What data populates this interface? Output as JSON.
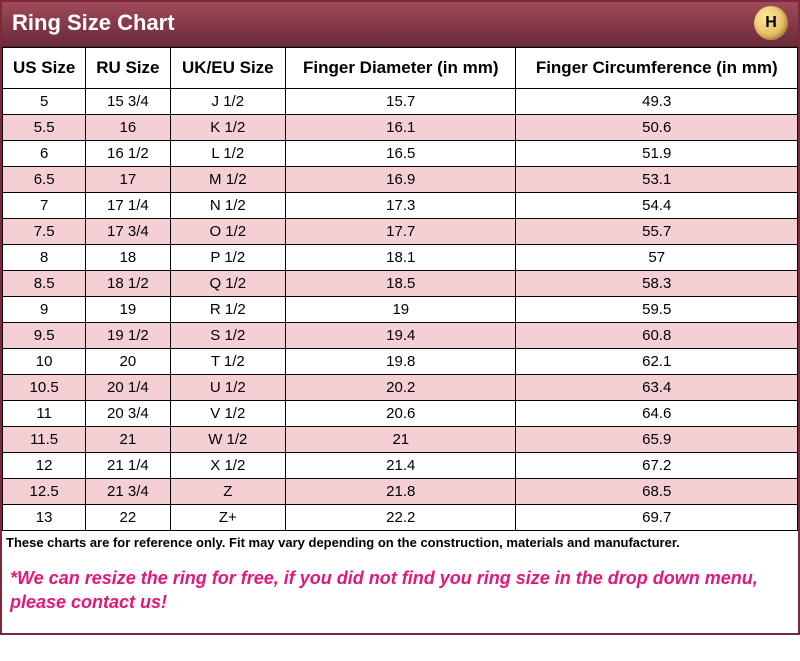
{
  "header": {
    "title": "Ring Size Chart",
    "logo_letter": "H"
  },
  "table": {
    "columns": [
      "US Size",
      "RU Size",
      "UK/EU Size",
      "Finger Diameter (in mm)",
      "Finger Circumference (in mm)"
    ],
    "rows": [
      [
        "5",
        "15 3/4",
        "J 1/2",
        "15.7",
        "49.3"
      ],
      [
        "5.5",
        "16",
        "K 1/2",
        "16.1",
        "50.6"
      ],
      [
        "6",
        "16 1/2",
        "L 1/2",
        "16.5",
        "51.9"
      ],
      [
        "6.5",
        "17",
        "M 1/2",
        "16.9",
        "53.1"
      ],
      [
        "7",
        "17 1/4",
        "N 1/2",
        "17.3",
        "54.4"
      ],
      [
        "7.5",
        "17 3/4",
        "O 1/2",
        "17.7",
        "55.7"
      ],
      [
        "8",
        "18",
        "P 1/2",
        "18.1",
        "57"
      ],
      [
        "8.5",
        "18 1/2",
        "Q 1/2",
        "18.5",
        "58.3"
      ],
      [
        "9",
        "19",
        "R 1/2",
        "19",
        "59.5"
      ],
      [
        "9.5",
        "19 1/2",
        "S 1/2",
        "19.4",
        "60.8"
      ],
      [
        "10",
        "20",
        "T 1/2",
        "19.8",
        "62.1"
      ],
      [
        "10.5",
        "20 1/4",
        "U 1/2",
        "20.2",
        "63.4"
      ],
      [
        "11",
        "20 3/4",
        "V 1/2",
        "20.6",
        "64.6"
      ],
      [
        "11.5",
        "21",
        "W 1/2",
        "21",
        "65.9"
      ],
      [
        "12",
        "21 1/4",
        "X 1/2",
        "21.4",
        "67.2"
      ],
      [
        "12.5",
        "21 3/4",
        "Z",
        "21.8",
        "68.5"
      ],
      [
        "13",
        "22",
        "Z+",
        "22.2",
        "69.7"
      ]
    ],
    "header_bg": "#ffffff",
    "row_odd_bg": "#ffffff",
    "row_even_bg": "#f4cfd3",
    "border_color": "#000000",
    "header_fontsize": 17,
    "cell_fontsize": 15
  },
  "footer": {
    "disclaimer": "These charts are for reference only. Fit may vary depending on the construction, materials and manufacturer.",
    "notice": "*We can resize the ring for free, if you did not find you ring size in the drop down menu, please contact us!",
    "notice_color": "#e2187d"
  },
  "frame": {
    "titlebar_gradient_top": "#a04a58",
    "titlebar_gradient_bottom": "#6b2a3a",
    "border_color": "#7a2a3a"
  }
}
